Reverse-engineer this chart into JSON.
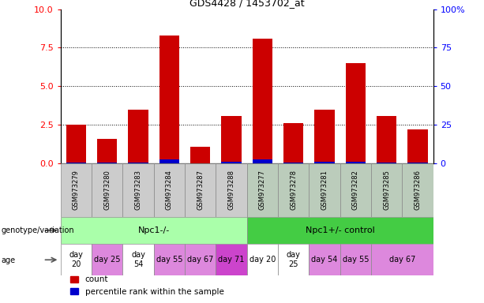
{
  "title": "GDS4428 / 1453702_at",
  "samples": [
    "GSM973279",
    "GSM973280",
    "GSM973283",
    "GSM973284",
    "GSM973287",
    "GSM973288",
    "GSM973277",
    "GSM973278",
    "GSM973281",
    "GSM973282",
    "GSM973285",
    "GSM973286"
  ],
  "count_values": [
    2.5,
    1.6,
    3.5,
    8.3,
    1.1,
    3.1,
    8.1,
    2.6,
    3.5,
    6.5,
    3.1,
    2.2
  ],
  "percentile_values": [
    0.08,
    0.05,
    0.08,
    0.25,
    0.02,
    0.1,
    0.25,
    0.08,
    0.1,
    0.12,
    0.08,
    0.06
  ],
  "bar_color": "#cc0000",
  "percentile_color": "#0000cc",
  "ylim_left": [
    0,
    10
  ],
  "ylim_right": [
    0,
    100
  ],
  "yticks_left": [
    0,
    2.5,
    5,
    7.5,
    10
  ],
  "yticks_right": [
    0,
    25,
    50,
    75,
    100
  ],
  "genotype_groups": [
    {
      "label": "Npc1-/-",
      "start": 0,
      "end": 6,
      "color": "#aaffaa"
    },
    {
      "label": "Npc1+/- control",
      "start": 6,
      "end": 12,
      "color": "#44cc44"
    }
  ],
  "age_labels": [
    {
      "label": "day\n20",
      "col": 0,
      "span": 1,
      "color": "#ffffff"
    },
    {
      "label": "day 25",
      "col": 1,
      "span": 1,
      "color": "#dd88dd"
    },
    {
      "label": "day\n54",
      "col": 2,
      "span": 1,
      "color": "#ffffff"
    },
    {
      "label": "day 55",
      "col": 3,
      "span": 1,
      "color": "#dd88dd"
    },
    {
      "label": "day 67",
      "col": 4,
      "span": 1,
      "color": "#dd88dd"
    },
    {
      "label": "day 71",
      "col": 5,
      "span": 1,
      "color": "#cc44cc"
    },
    {
      "label": "day 20",
      "col": 6,
      "span": 1,
      "color": "#ffffff"
    },
    {
      "label": "day\n25",
      "col": 7,
      "span": 1,
      "color": "#ffffff"
    },
    {
      "label": "day 54",
      "col": 8,
      "span": 1,
      "color": "#dd88dd"
    },
    {
      "label": "day 55",
      "col": 9,
      "span": 1,
      "color": "#dd88dd"
    },
    {
      "label": "day 67",
      "col": 10,
      "span": 2,
      "color": "#dd88dd"
    }
  ],
  "sample_bg_left": "#cccccc",
  "sample_bg_right": "#bbccbb",
  "background_color": "#ffffff"
}
